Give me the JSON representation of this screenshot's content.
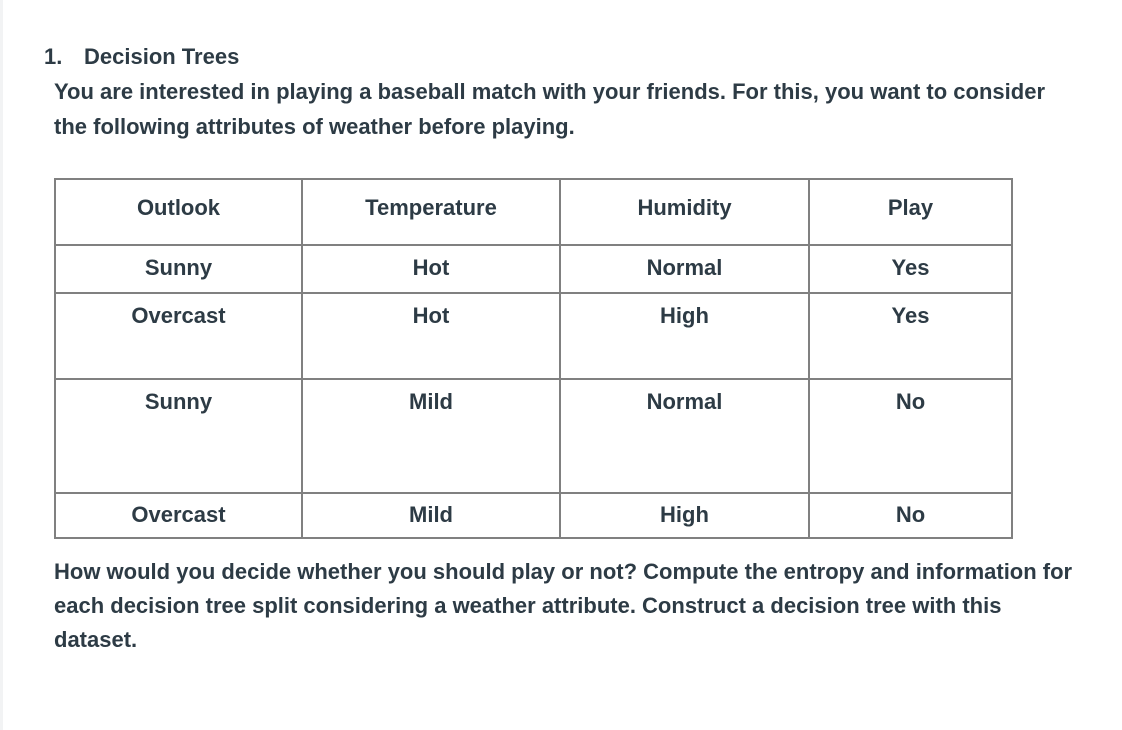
{
  "heading": {
    "number": "1.",
    "title": "Decision Trees"
  },
  "intro": "You are interested in playing a baseball match with your friends. For this, you want to consider the following attributes of weather before playing.",
  "table": {
    "headers": [
      "Outlook",
      "Temperature",
      "Humidity",
      "Play"
    ],
    "rows": [
      [
        "Sunny",
        "Hot",
        "Normal",
        "Yes"
      ],
      [
        "Overcast",
        "Hot",
        "High",
        "Yes"
      ],
      [
        "Sunny",
        "Mild",
        "Normal",
        "No"
      ],
      [
        "Overcast",
        "Mild",
        "High",
        "No"
      ]
    ]
  },
  "question": "How would you decide whether you should play or not? Compute the entropy and information for each decision tree split considering a weather attribute. Construct a decision tree with this dataset."
}
